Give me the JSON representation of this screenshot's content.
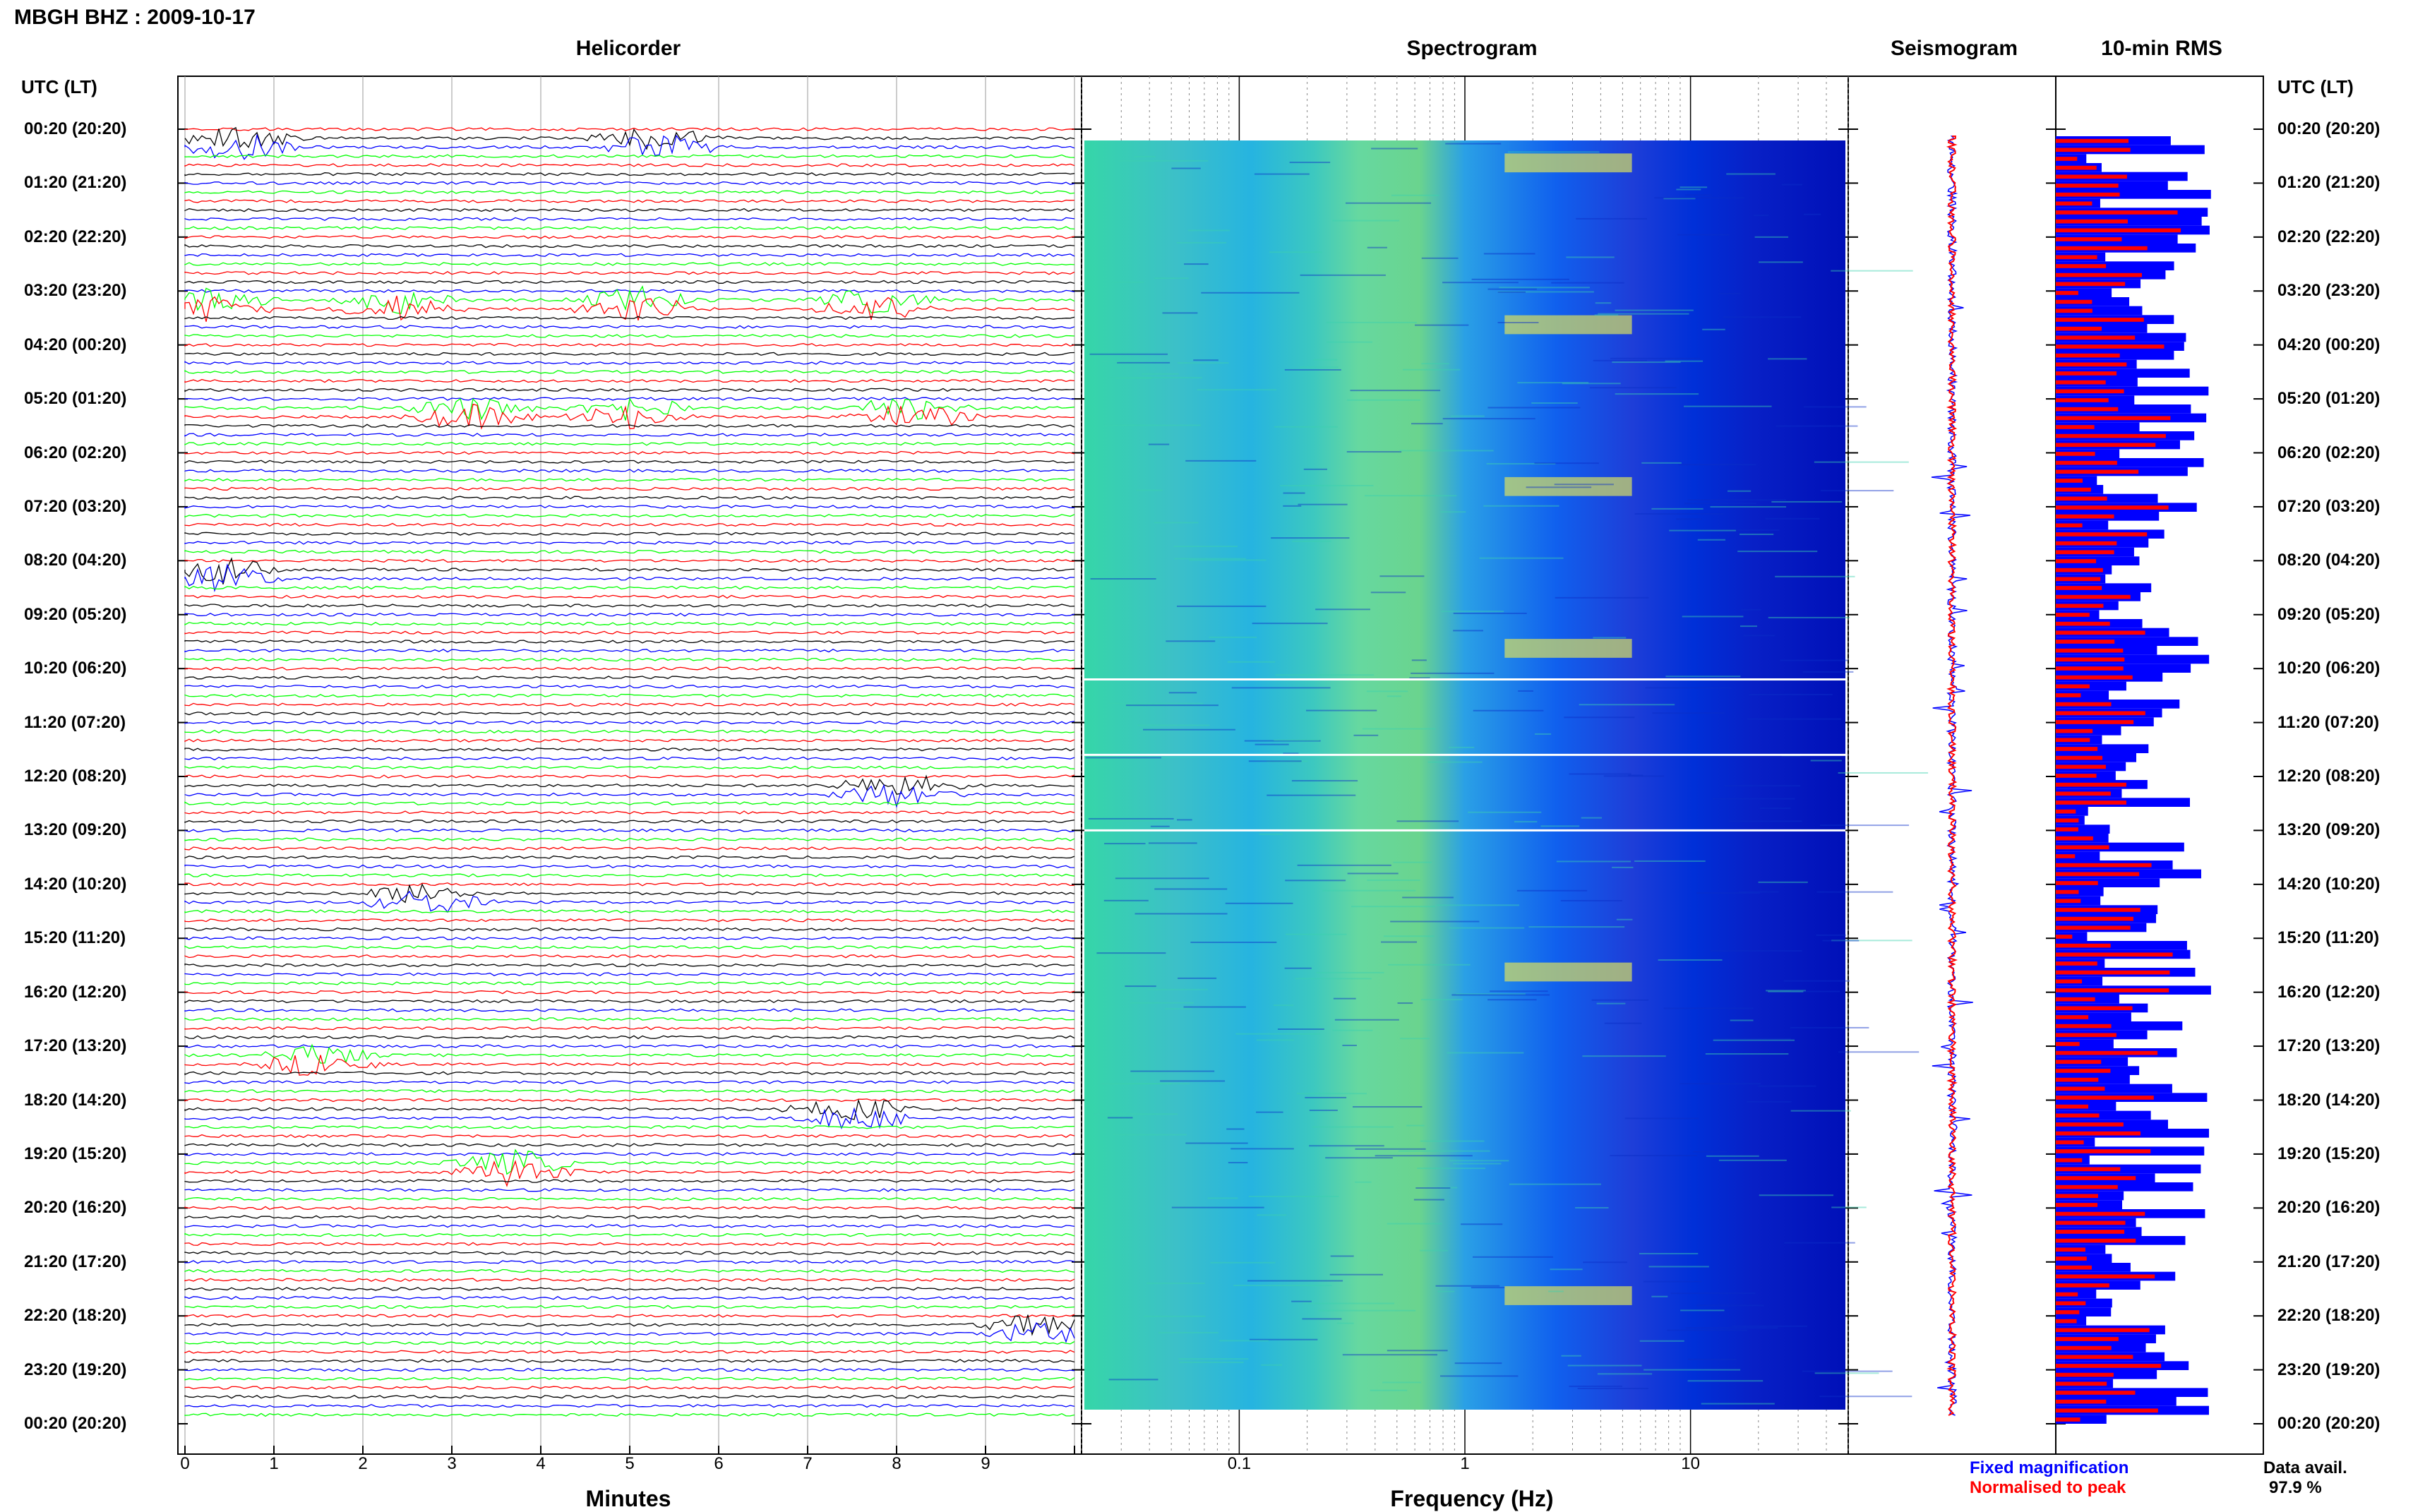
{
  "header": {
    "station_title": "MBGH BHZ : 2009-10-17",
    "utc_lt_left": "UTC (LT)",
    "utc_lt_right": "UTC (LT)"
  },
  "panels": {
    "helicorder": "Helicorder",
    "spectrogram": "Spectrogram",
    "seismogram": "Seismogram",
    "rms": "10-min RMS"
  },
  "axes": {
    "minutes_label": "Minutes",
    "frequency_label": "Frequency (Hz)",
    "minute_ticks": [
      "0",
      "1",
      "2",
      "3",
      "4",
      "5",
      "6",
      "7",
      "8",
      "9"
    ],
    "frequency_ticks": [
      "0.1",
      "1",
      "10"
    ]
  },
  "time_labels": [
    "00:20 (20:20)",
    "01:20 (21:20)",
    "02:20 (22:20)",
    "03:20 (23:20)",
    "04:20 (00:20)",
    "05:20 (01:20)",
    "06:20 (02:20)",
    "07:20 (03:20)",
    "08:20 (04:20)",
    "09:20 (05:20)",
    "10:20 (06:20)",
    "11:20 (07:20)",
    "12:20 (08:20)",
    "13:20 (09:20)",
    "14:20 (10:20)",
    "15:20 (11:20)",
    "16:20 (12:20)",
    "17:20 (13:20)",
    "18:20 (14:20)",
    "19:20 (15:20)",
    "20:20 (16:20)",
    "21:20 (17:20)",
    "22:20 (18:20)",
    "23:20 (19:20)",
    "00:20 (20:20)"
  ],
  "legend": {
    "fixed": "Fixed magnification",
    "normalised": "Normalised to peak",
    "fixed_color": "#0000ff",
    "normalised_color": "#ff0000"
  },
  "availability": {
    "label": "Data avail.",
    "value": "97.9 %"
  },
  "colors": {
    "trace_cycle": [
      "#ff0000",
      "#000000",
      "#0000ff",
      "#00ff00"
    ],
    "rms_fixed": "#0000ff",
    "rms_normalised": "#ff0000"
  },
  "chart_data": [
    {
      "type": "line",
      "title": "Helicorder",
      "xlabel": "Minutes",
      "x_range": [
        0,
        10
      ],
      "rows_per_hour": 6,
      "hours": 24,
      "large_events": [
        {
          "hour": 0,
          "minute": 0.6
        },
        {
          "hour": 0,
          "minute": 5.3
        },
        {
          "hour": 3,
          "minute": 0.3
        },
        {
          "hour": 3,
          "minute": 2.4
        },
        {
          "hour": 3,
          "minute": 5.1
        },
        {
          "hour": 3,
          "minute": 7.8
        },
        {
          "hour": 5,
          "minute": 5.0
        },
        {
          "hour": 5,
          "minute": 8.2
        },
        {
          "hour": 5,
          "minute": 3.2
        },
        {
          "hour": 8,
          "minute": 0.4
        },
        {
          "hour": 12,
          "minute": 8.0
        },
        {
          "hour": 14,
          "minute": 2.7
        },
        {
          "hour": 17,
          "minute": 1.5
        },
        {
          "hour": 18,
          "minute": 7.5
        },
        {
          "hour": 19,
          "minute": 3.7
        },
        {
          "hour": 22,
          "minute": 9.6
        }
      ]
    },
    {
      "type": "heatmap",
      "title": "Spectrogram",
      "xlabel": "Frequency (Hz)",
      "x_scale": "log",
      "x_range": [
        0.02,
        50
      ],
      "energy_bands_hz": [
        [
          1.5,
          5.5
        ]
      ]
    },
    {
      "type": "line",
      "title": "Seismogram",
      "series": [
        {
          "name": "Fixed magnification",
          "color": "#0000ff"
        },
        {
          "name": "Normalised to peak",
          "color": "#ff0000"
        }
      ]
    },
    {
      "type": "bar",
      "title": "10-min RMS",
      "orientation": "horizontal",
      "bins": 144,
      "series": [
        {
          "name": "Fixed magnification",
          "color": "#0000ff"
        },
        {
          "name": "Normalised to peak",
          "color": "#ff0000"
        }
      ]
    }
  ]
}
